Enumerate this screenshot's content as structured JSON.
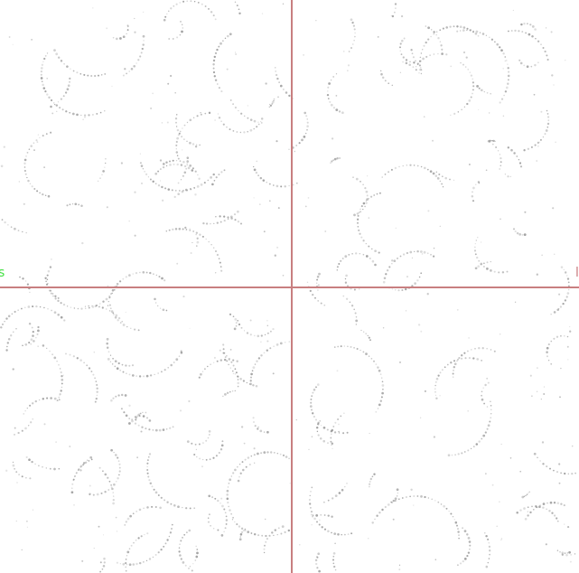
{
  "canvas": {
    "left_label": "s",
    "right_label": "l",
    "crosshair_color": "#c87f80",
    "left_label_color": "#44e044",
    "right_label_color": "#c87f80",
    "dot_color": "#8a8a8a",
    "background": "#ffffff"
  }
}
